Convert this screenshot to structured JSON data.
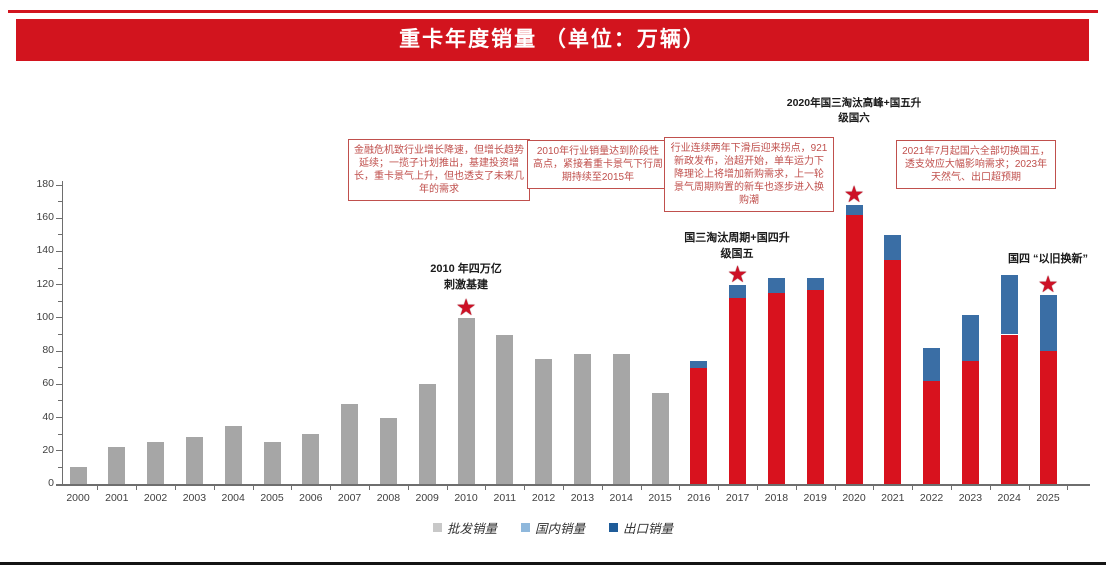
{
  "page": {
    "title": "重卡年度销量 （单位：万辆）",
    "accent_color": "#d2141e"
  },
  "chart_data": {
    "type": "bar",
    "stacked": true,
    "title": "重卡年度销量 （单位：万辆）",
    "xlabel": "",
    "ylabel": "",
    "ylim": [
      0,
      180
    ],
    "ytick_step": 20,
    "grid": false,
    "legend_position": "bottom",
    "categories": [
      "2000",
      "2001",
      "2002",
      "2003",
      "2004",
      "2005",
      "2006",
      "2007",
      "2008",
      "2009",
      "2010",
      "2011",
      "2012",
      "2013",
      "2014",
      "2015",
      "2016",
      "2017",
      "2018",
      "2019",
      "2020",
      "2021",
      "2022",
      "2023",
      "2024",
      "2025"
    ],
    "series": [
      {
        "name": "批发销量",
        "color": "#a6a6a6",
        "values": [
          10,
          22,
          25,
          28,
          35,
          25,
          30,
          48,
          40,
          60,
          100,
          90,
          75,
          78,
          78,
          55,
          0,
          0,
          0,
          0,
          0,
          0,
          0,
          0,
          0,
          0
        ]
      },
      {
        "name": "国内销量",
        "color": "#d8121e",
        "values": [
          0,
          0,
          0,
          0,
          0,
          0,
          0,
          0,
          0,
          0,
          0,
          0,
          0,
          0,
          0,
          0,
          70,
          112,
          115,
          117,
          162,
          135,
          62,
          74,
          90,
          80
        ]
      },
      {
        "name": "出口销量",
        "color": "#3a6ea5",
        "values": [
          0,
          0,
          0,
          0,
          0,
          0,
          0,
          0,
          0,
          0,
          0,
          0,
          0,
          0,
          0,
          0,
          4,
          8,
          9,
          7,
          6,
          15,
          20,
          28,
          36,
          34
        ]
      }
    ],
    "legend": [
      {
        "label": "批发销量",
        "color": "#c8c8c8"
      },
      {
        "label": "国内销量",
        "color": "#8fb8dc"
      },
      {
        "label": "出口销量",
        "color": "#1f5c99"
      }
    ]
  },
  "annotations": {
    "boxes": [
      {
        "text": "金融危机致行业增长降速，但增长趋势延续；一揽子计划推出，基建投资增长，重卡景气上升，但也透支了未来几年的需求"
      },
      {
        "text": "2010年行业销量达到阶段性高点，紧接着重卡景气下行周期持续至2015年"
      },
      {
        "text": "行业连续两年下滑后迎来拐点，921新政发布，治超开始，单车运力下降理论上将增加新购需求，上一轮景气周期购置的新车也逐步进入换购潮"
      },
      {
        "text": "2021年7月起国六全部切换国五，透支效应大幅影响需求；2023年天然气、出口超预期"
      }
    ],
    "notes": [
      {
        "line1": "2010 年四万亿",
        "line2": "刺激基建"
      },
      {
        "line1": "国三淘汰周期+国四升",
        "line2": "级国五"
      },
      {
        "line1": "2020年国三淘汰高峰+国五升",
        "line2": "级国六"
      },
      {
        "line1": "国四 “以旧换新”",
        "line2": ""
      }
    ],
    "star_years": [
      "2010",
      "2017",
      "2020",
      "2025"
    ]
  }
}
